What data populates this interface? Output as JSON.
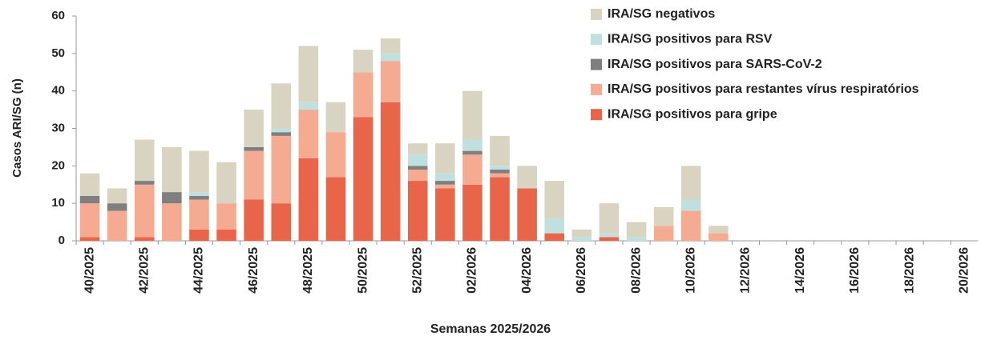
{
  "chart_data": {
    "type": "stacked_bar",
    "xlabel": "Semanas 2025/2026",
    "ylabel": "Casos ARI/SG (n)",
    "categories": [
      "40/2025",
      null,
      "42/2025",
      null,
      "44/2025",
      null,
      "46/2025",
      null,
      "48/2025",
      null,
      "50/2025",
      null,
      "52/2025",
      null,
      "02/2026",
      null,
      "04/2026",
      null,
      "06/2026",
      null,
      "08/2026",
      null,
      "10/2026",
      null,
      "12/2026",
      null,
      "14/2026",
      null,
      "16/2026",
      null,
      "18/2026",
      null,
      "20/2026"
    ],
    "ylim": [
      0,
      60
    ],
    "yticks": [
      0,
      10,
      20,
      30,
      40,
      50,
      60
    ],
    "series": [
      {
        "name": "IRA/SG negativos",
        "color": "#d9d3c2",
        "values": [
          6,
          4,
          11,
          12,
          11,
          11,
          10,
          12,
          15,
          8,
          6,
          4,
          3,
          8,
          13,
          8,
          6,
          10,
          2,
          8,
          4,
          5,
          9,
          2,
          0,
          0,
          0,
          0,
          0,
          0,
          0,
          0,
          0
        ]
      },
      {
        "name": "IRA/SG positivos para RSV",
        "color": "#bfe0de",
        "values": [
          0,
          0,
          0,
          0,
          1,
          0,
          0,
          1,
          2,
          0,
          0,
          2,
          3,
          2,
          3,
          1,
          0,
          4,
          1,
          1,
          1,
          0,
          3,
          0,
          0,
          0,
          0,
          0,
          0,
          0,
          0,
          0,
          0
        ]
      },
      {
        "name": "IRA/SG positivos para SARS-CoV-2",
        "color": "#7f7f7f",
        "values": [
          2,
          2,
          1,
          3,
          1,
          0,
          1,
          1,
          0,
          0,
          0,
          0,
          1,
          1,
          1,
          1,
          0,
          0,
          0,
          0,
          0,
          0,
          0,
          0,
          0,
          0,
          0,
          0,
          0,
          0,
          0,
          0,
          0
        ]
      },
      {
        "name": "IRA/SG positivos para restantes vírus respiratórios",
        "color": "#f4ab92",
        "values": [
          9,
          8,
          14,
          10,
          8,
          7,
          13,
          18,
          13,
          12,
          12,
          11,
          3,
          1,
          8,
          1,
          0,
          0,
          0,
          0,
          0,
          4,
          8,
          2,
          0,
          0,
          0,
          0,
          0,
          0,
          0,
          0,
          0
        ]
      },
      {
        "name": "IRA/SG positivos para gripe",
        "color": "#e8654a",
        "values": [
          1,
          0,
          1,
          0,
          3,
          3,
          11,
          10,
          22,
          17,
          33,
          37,
          16,
          14,
          15,
          17,
          14,
          2,
          0,
          1,
          0,
          0,
          0,
          0,
          0,
          0,
          0,
          0,
          0,
          0,
          0,
          0,
          0
        ]
      }
    ]
  }
}
